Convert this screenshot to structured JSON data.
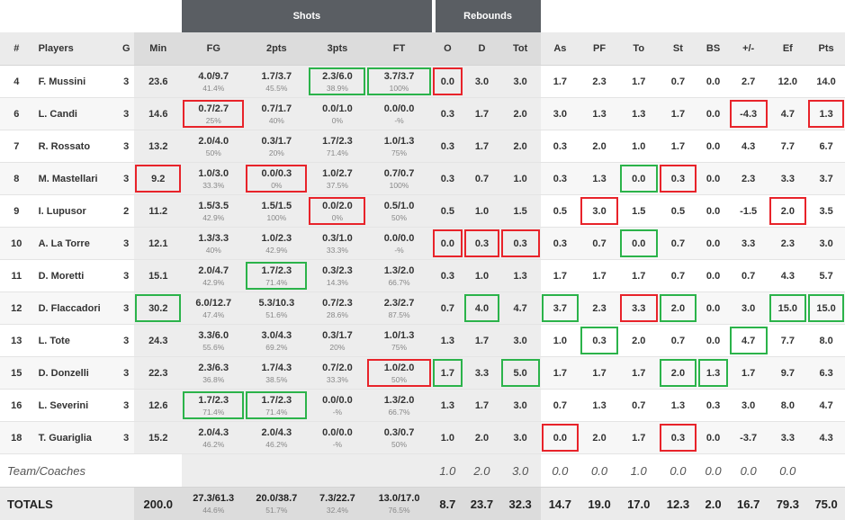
{
  "headers": {
    "groups": {
      "shots": "Shots",
      "rebounds": "Rebounds"
    },
    "columns": [
      "#",
      "Players",
      "G",
      "Min",
      "FG",
      "2pts",
      "3pts",
      "FT",
      "O",
      "D",
      "Tot",
      "As",
      "PF",
      "To",
      "St",
      "BS",
      "+/-",
      "Ef",
      "Pts"
    ]
  },
  "rows": [
    {
      "num": "4",
      "name": "F. Mussini",
      "g": "3",
      "min": "23.6",
      "fg": "4.0/9.7",
      "fg_pct": "41.4%",
      "p2": "1.7/3.7",
      "p2_pct": "45.5%",
      "p3": "2.3/6.0",
      "p3_pct": "38.9%",
      "ft": "3.7/3.7",
      "ft_pct": "100%",
      "o": "0.0",
      "d": "3.0",
      "tot": "3.0",
      "as": "1.7",
      "pf": "2.3",
      "to": "1.7",
      "st": "0.7",
      "bs": "0.0",
      "pm": "2.7",
      "ef": "12.0",
      "pts": "14.0"
    },
    {
      "num": "6",
      "name": "L. Candi",
      "g": "3",
      "min": "14.6",
      "fg": "0.7/2.7",
      "fg_pct": "25%",
      "p2": "0.7/1.7",
      "p2_pct": "40%",
      "p3": "0.0/1.0",
      "p3_pct": "0%",
      "ft": "0.0/0.0",
      "ft_pct": "-%",
      "o": "0.3",
      "d": "1.7",
      "tot": "2.0",
      "as": "3.0",
      "pf": "1.3",
      "to": "1.3",
      "st": "1.7",
      "bs": "0.0",
      "pm": "-4.3",
      "ef": "4.7",
      "pts": "1.3"
    },
    {
      "num": "7",
      "name": "R. Rossato",
      "g": "3",
      "min": "13.2",
      "fg": "2.0/4.0",
      "fg_pct": "50%",
      "p2": "0.3/1.7",
      "p2_pct": "20%",
      "p3": "1.7/2.3",
      "p3_pct": "71.4%",
      "ft": "1.0/1.3",
      "ft_pct": "75%",
      "o": "0.3",
      "d": "1.7",
      "tot": "2.0",
      "as": "0.3",
      "pf": "2.0",
      "to": "1.0",
      "st": "1.7",
      "bs": "0.0",
      "pm": "4.3",
      "ef": "7.7",
      "pts": "6.7"
    },
    {
      "num": "8",
      "name": "M. Mastellari",
      "g": "3",
      "min": "9.2",
      "fg": "1.0/3.0",
      "fg_pct": "33.3%",
      "p2": "0.0/0.3",
      "p2_pct": "0%",
      "p3": "1.0/2.7",
      "p3_pct": "37.5%",
      "ft": "0.7/0.7",
      "ft_pct": "100%",
      "o": "0.3",
      "d": "0.7",
      "tot": "1.0",
      "as": "0.3",
      "pf": "1.3",
      "to": "0.0",
      "st": "0.3",
      "bs": "0.0",
      "pm": "2.3",
      "ef": "3.3",
      "pts": "3.7"
    },
    {
      "num": "9",
      "name": "I. Lupusor",
      "g": "2",
      "min": "11.2",
      "fg": "1.5/3.5",
      "fg_pct": "42.9%",
      "p2": "1.5/1.5",
      "p2_pct": "100%",
      "p3": "0.0/2.0",
      "p3_pct": "0%",
      "ft": "0.5/1.0",
      "ft_pct": "50%",
      "o": "0.5",
      "d": "1.0",
      "tot": "1.5",
      "as": "0.5",
      "pf": "3.0",
      "to": "1.5",
      "st": "0.5",
      "bs": "0.0",
      "pm": "-1.5",
      "ef": "2.0",
      "pts": "3.5"
    },
    {
      "num": "10",
      "name": "A. La Torre",
      "g": "3",
      "min": "12.1",
      "fg": "1.3/3.3",
      "fg_pct": "40%",
      "p2": "1.0/2.3",
      "p2_pct": "42.9%",
      "p3": "0.3/1.0",
      "p3_pct": "33.3%",
      "ft": "0.0/0.0",
      "ft_pct": "-%",
      "o": "0.0",
      "d": "0.3",
      "tot": "0.3",
      "as": "0.3",
      "pf": "0.7",
      "to": "0.0",
      "st": "0.7",
      "bs": "0.0",
      "pm": "3.3",
      "ef": "2.3",
      "pts": "3.0"
    },
    {
      "num": "11",
      "name": "D. Moretti",
      "g": "3",
      "min": "15.1",
      "fg": "2.0/4.7",
      "fg_pct": "42.9%",
      "p2": "1.7/2.3",
      "p2_pct": "71.4%",
      "p3": "0.3/2.3",
      "p3_pct": "14.3%",
      "ft": "1.3/2.0",
      "ft_pct": "66.7%",
      "o": "0.3",
      "d": "1.0",
      "tot": "1.3",
      "as": "1.7",
      "pf": "1.7",
      "to": "1.7",
      "st": "0.7",
      "bs": "0.0",
      "pm": "0.7",
      "ef": "4.3",
      "pts": "5.7"
    },
    {
      "num": "12",
      "name": "D. Flaccadori",
      "g": "3",
      "min": "30.2",
      "fg": "6.0/12.7",
      "fg_pct": "47.4%",
      "p2": "5.3/10.3",
      "p2_pct": "51.6%",
      "p3": "0.7/2.3",
      "p3_pct": "28.6%",
      "ft": "2.3/2.7",
      "ft_pct": "87.5%",
      "o": "0.7",
      "d": "4.0",
      "tot": "4.7",
      "as": "3.7",
      "pf": "2.3",
      "to": "3.3",
      "st": "2.0",
      "bs": "0.0",
      "pm": "3.0",
      "ef": "15.0",
      "pts": "15.0"
    },
    {
      "num": "13",
      "name": "L. Tote",
      "g": "3",
      "min": "24.3",
      "fg": "3.3/6.0",
      "fg_pct": "55.6%",
      "p2": "3.0/4.3",
      "p2_pct": "69.2%",
      "p3": "0.3/1.7",
      "p3_pct": "20%",
      "ft": "1.0/1.3",
      "ft_pct": "75%",
      "o": "1.3",
      "d": "1.7",
      "tot": "3.0",
      "as": "1.0",
      "pf": "0.3",
      "to": "2.0",
      "st": "0.7",
      "bs": "0.0",
      "pm": "4.7",
      "ef": "7.7",
      "pts": "8.0"
    },
    {
      "num": "15",
      "name": "D. Donzelli",
      "g": "3",
      "min": "22.3",
      "fg": "2.3/6.3",
      "fg_pct": "36.8%",
      "p2": "1.7/4.3",
      "p2_pct": "38.5%",
      "p3": "0.7/2.0",
      "p3_pct": "33.3%",
      "ft": "1.0/2.0",
      "ft_pct": "50%",
      "o": "1.7",
      "d": "3.3",
      "tot": "5.0",
      "as": "1.7",
      "pf": "1.7",
      "to": "1.7",
      "st": "2.0",
      "bs": "1.3",
      "pm": "1.7",
      "ef": "9.7",
      "pts": "6.3"
    },
    {
      "num": "16",
      "name": "L. Severini",
      "g": "3",
      "min": "12.6",
      "fg": "1.7/2.3",
      "fg_pct": "71.4%",
      "p2": "1.7/2.3",
      "p2_pct": "71.4%",
      "p3": "0.0/0.0",
      "p3_pct": "-%",
      "ft": "1.3/2.0",
      "ft_pct": "66.7%",
      "o": "1.3",
      "d": "1.7",
      "tot": "3.0",
      "as": "0.7",
      "pf": "1.3",
      "to": "0.7",
      "st": "1.3",
      "bs": "0.3",
      "pm": "3.0",
      "ef": "8.0",
      "pts": "4.7"
    },
    {
      "num": "18",
      "name": "T. Guariglia",
      "g": "3",
      "min": "15.2",
      "fg": "2.0/4.3",
      "fg_pct": "46.2%",
      "p2": "2.0/4.3",
      "p2_pct": "46.2%",
      "p3": "0.0/0.0",
      "p3_pct": "-%",
      "ft": "0.3/0.7",
      "ft_pct": "50%",
      "o": "1.0",
      "d": "2.0",
      "tot": "3.0",
      "as": "0.0",
      "pf": "2.0",
      "to": "1.7",
      "st": "0.3",
      "bs": "0.0",
      "pm": "-3.7",
      "ef": "3.3",
      "pts": "4.3"
    }
  ],
  "team": {
    "label": "Team/Coaches",
    "o": "1.0",
    "d": "2.0",
    "tot": "3.0",
    "as": "0.0",
    "pf": "0.0",
    "to": "1.0",
    "st": "0.0",
    "bs": "0.0",
    "pm": "0.0",
    "ef": "0.0"
  },
  "totals": {
    "label": "TOTALS",
    "min": "200.0",
    "fg": "27.3/61.3",
    "fg_pct": "44.6%",
    "p2": "20.0/38.7",
    "p2_pct": "51.7%",
    "p3": "7.3/22.7",
    "p3_pct": "32.4%",
    "ft": "13.0/17.0",
    "ft_pct": "76.5%",
    "o": "8.7",
    "d": "23.7",
    "tot": "32.3",
    "as": "14.7",
    "pf": "19.0",
    "to": "17.0",
    "st": "12.3",
    "bs": "2.0",
    "pm": "16.7",
    "ef": "79.3",
    "pts": "75.0"
  },
  "highlights": {
    "red": [
      [
        0,
        "o"
      ],
      [
        1,
        "fg"
      ],
      [
        1,
        "pm"
      ],
      [
        1,
        "pts"
      ],
      [
        3,
        "min"
      ],
      [
        3,
        "p2"
      ],
      [
        3,
        "st"
      ],
      [
        4,
        "p3"
      ],
      [
        4,
        "pf"
      ],
      [
        4,
        "ef"
      ],
      [
        5,
        "o"
      ],
      [
        5,
        "d"
      ],
      [
        5,
        "tot"
      ],
      [
        7,
        "to"
      ],
      [
        9,
        "ft"
      ],
      [
        11,
        "as"
      ],
      [
        11,
        "st"
      ]
    ],
    "green": [
      [
        0,
        "p3"
      ],
      [
        0,
        "ft"
      ],
      [
        3,
        "to"
      ],
      [
        5,
        "to"
      ],
      [
        6,
        "p2"
      ],
      [
        7,
        "min"
      ],
      [
        7,
        "d"
      ],
      [
        7,
        "as"
      ],
      [
        7,
        "st"
      ],
      [
        7,
        "ef"
      ],
      [
        7,
        "pts"
      ],
      [
        8,
        "pf"
      ],
      [
        8,
        "pm"
      ],
      [
        9,
        "o"
      ],
      [
        9,
        "tot"
      ],
      [
        9,
        "st"
      ],
      [
        9,
        "bs"
      ],
      [
        10,
        "fg"
      ],
      [
        10,
        "p2"
      ]
    ]
  },
  "colors": {
    "red": "#e8232a",
    "green": "#2bb34a",
    "group_header": "#5a5e63"
  }
}
